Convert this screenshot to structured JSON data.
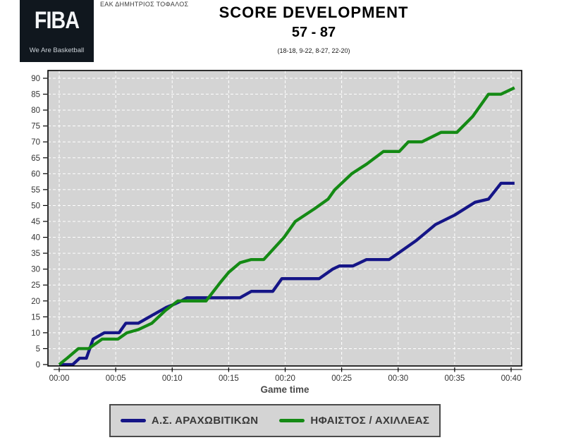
{
  "header": {
    "venue": "ΕΑΚ ΔΗΜΗΤΡΙΟΣ ΤΟΦΑΛΟΣ",
    "logo": {
      "brand": "FIBA",
      "tagline": "We Are Basketball",
      "bg_color": "#10171e"
    },
    "title": "SCORE DEVELOPMENT",
    "score": "57 - 87",
    "quarter_scores": "(18-18, 9-22, 8-27, 22-20)"
  },
  "chart_data": {
    "type": "line",
    "title": "SCORE DEVELOPMENT",
    "xlabel": "Game time",
    "ylabel": "",
    "x_tick_labels": [
      "00:00",
      "00:05",
      "00:10",
      "00:15",
      "00:20",
      "00:25",
      "00:30",
      "00:35",
      "00:40"
    ],
    "x_tick_minutes": [
      0,
      5,
      10,
      15,
      20,
      25,
      30,
      35,
      40
    ],
    "xlim_minutes": [
      0,
      40
    ],
    "ylim": [
      0,
      92
    ],
    "y_ticks": [
      0,
      5,
      10,
      15,
      20,
      25,
      30,
      35,
      40,
      45,
      50,
      55,
      60,
      65,
      70,
      75,
      80,
      85,
      90
    ],
    "grid": "white-dashed",
    "plot_background": "#d4d4d4",
    "series": [
      {
        "name": "Α.Σ. ΑΡΑΧΩΒΙΤΙΚΩΝ",
        "color": "#151587",
        "final_score": 57,
        "points": [
          [
            0,
            0
          ],
          [
            1.2,
            0
          ],
          [
            1.8,
            2
          ],
          [
            2.4,
            2
          ],
          [
            3,
            8
          ],
          [
            3.5,
            9
          ],
          [
            4,
            10
          ],
          [
            5.3,
            10
          ],
          [
            5.9,
            13
          ],
          [
            7,
            13
          ],
          [
            8,
            15
          ],
          [
            9,
            17
          ],
          [
            9.5,
            18
          ],
          [
            10.2,
            19
          ],
          [
            10.8,
            20
          ],
          [
            11.3,
            21
          ],
          [
            16,
            21
          ],
          [
            17,
            23
          ],
          [
            18.9,
            23
          ],
          [
            19.7,
            27
          ],
          [
            23,
            27
          ],
          [
            24.2,
            30
          ],
          [
            24.8,
            31
          ],
          [
            26,
            31
          ],
          [
            27.2,
            33
          ],
          [
            29.2,
            33
          ],
          [
            30,
            35
          ],
          [
            31.6,
            39
          ],
          [
            33.3,
            44
          ],
          [
            35,
            47
          ],
          [
            36.8,
            51
          ],
          [
            38,
            52
          ],
          [
            39.1,
            57
          ],
          [
            40.3,
            57
          ]
        ]
      },
      {
        "name": "ΗΦΑΙΣΤΟΣ / ΑΧΙΛΛΕΑΣ",
        "color": "#148a14",
        "final_score": 87,
        "points": [
          [
            0,
            0
          ],
          [
            0.7,
            2
          ],
          [
            1.7,
            5
          ],
          [
            2.6,
            5
          ],
          [
            3.8,
            8
          ],
          [
            5.2,
            8
          ],
          [
            6,
            10
          ],
          [
            7,
            11
          ],
          [
            8.2,
            13
          ],
          [
            9.4,
            17
          ],
          [
            10.5,
            20
          ],
          [
            13,
            20
          ],
          [
            14.3,
            26
          ],
          [
            15,
            29
          ],
          [
            16,
            32
          ],
          [
            17,
            33
          ],
          [
            18.1,
            33
          ],
          [
            19.9,
            40
          ],
          [
            20.9,
            45
          ],
          [
            22.6,
            49
          ],
          [
            23.8,
            52
          ],
          [
            24.4,
            55
          ],
          [
            25.9,
            60
          ],
          [
            27.2,
            63
          ],
          [
            28.7,
            67
          ],
          [
            30.1,
            67
          ],
          [
            30.9,
            70
          ],
          [
            32.1,
            70
          ],
          [
            33.8,
            73
          ],
          [
            35.2,
            73
          ],
          [
            36.6,
            78
          ],
          [
            38,
            85
          ],
          [
            39.1,
            85
          ],
          [
            40.3,
            87
          ]
        ]
      }
    ]
  }
}
